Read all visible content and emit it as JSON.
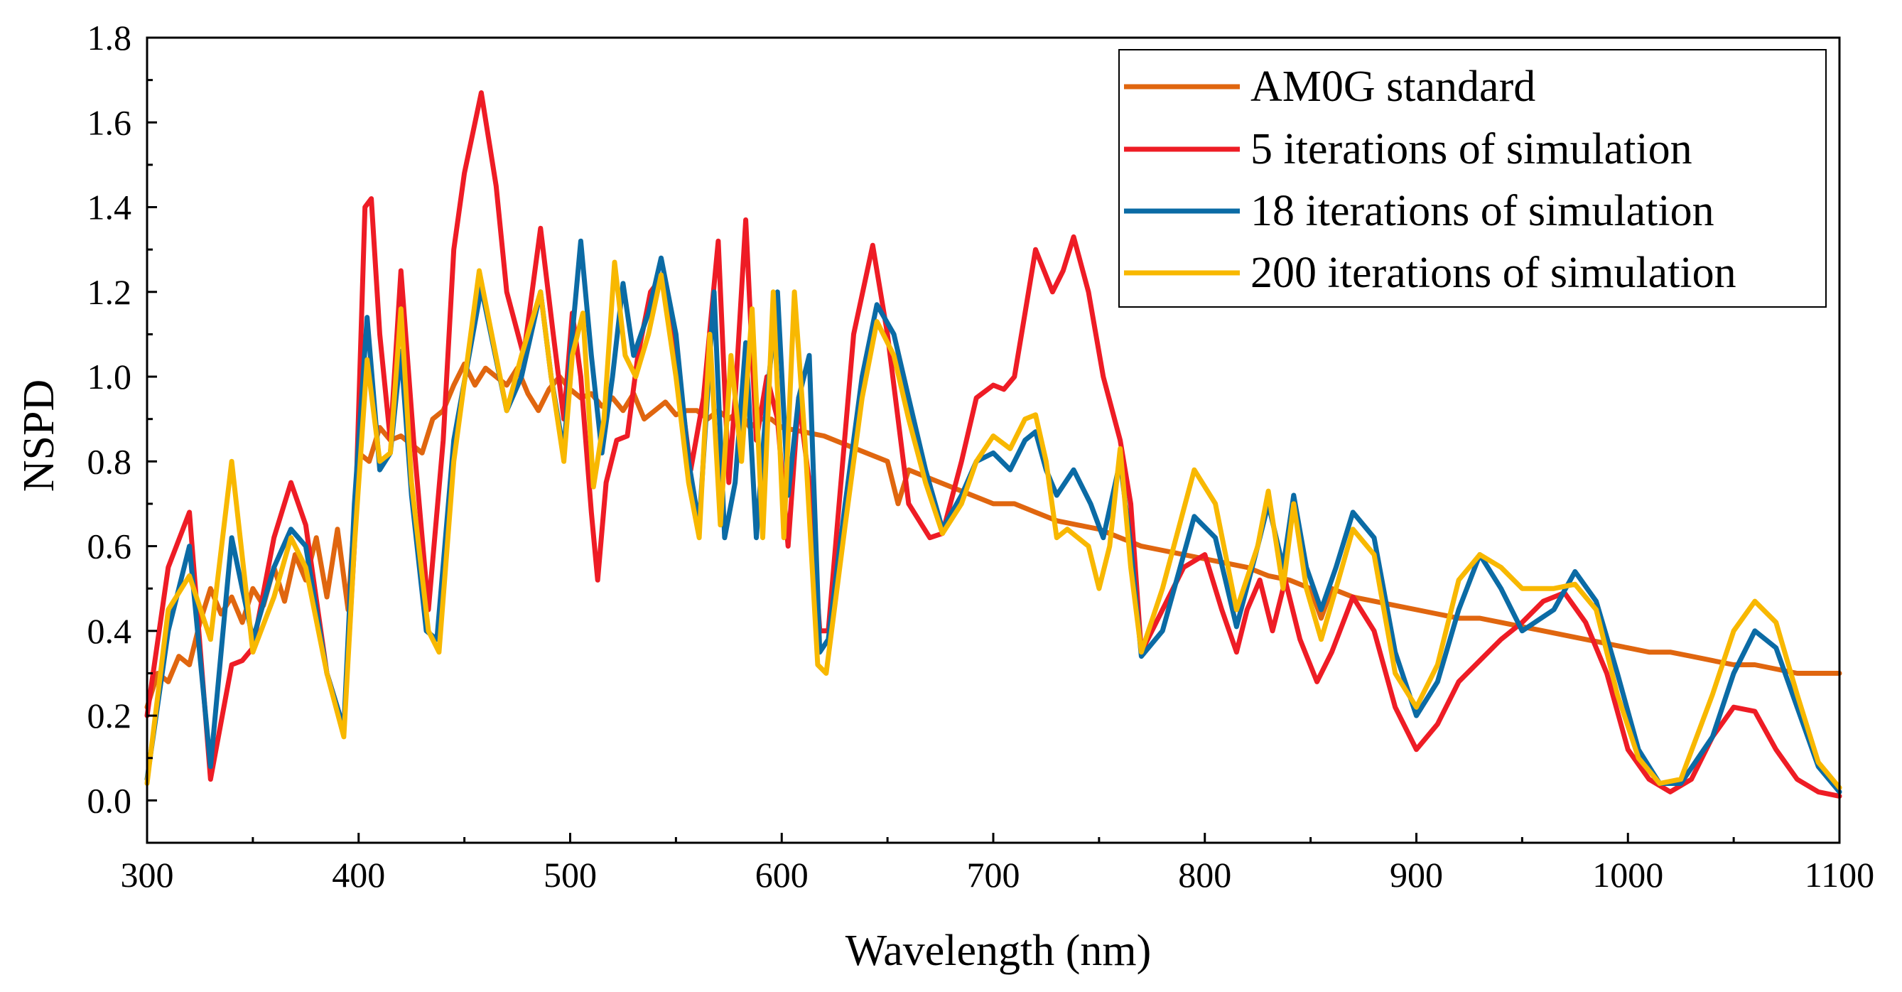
{
  "chart_data": {
    "type": "line",
    "title": "",
    "xlabel": "Wavelength (nm)",
    "ylabel": "NSPD",
    "xlim": [
      300,
      1100
    ],
    "ylim": [
      -0.1,
      1.8
    ],
    "xticks": [
      300,
      400,
      500,
      600,
      700,
      800,
      900,
      1000,
      1100
    ],
    "xtick_labels": [
      "300",
      "400",
      "500",
      "600",
      "700",
      "800",
      "900",
      "1000",
      "1100"
    ],
    "yticks": [
      0.0,
      0.2,
      0.4,
      0.6,
      0.8,
      1.0,
      1.2,
      1.4,
      1.6,
      1.8
    ],
    "ytick_labels": [
      "0.0",
      "0.2",
      "0.4",
      "0.6",
      "0.8",
      "1.0",
      "1.2",
      "1.4",
      "1.6",
      "1.8"
    ],
    "grid": false,
    "legend_position": "top-right",
    "series": [
      {
        "name": "AM0G standard",
        "color": "#E0660F",
        "x": [
          300,
          305,
          310,
          315,
          320,
          325,
          330,
          335,
          340,
          345,
          350,
          355,
          360,
          365,
          370,
          375,
          380,
          385,
          390,
          395,
          400,
          405,
          410,
          415,
          420,
          425,
          430,
          435,
          440,
          445,
          450,
          455,
          460,
          465,
          470,
          475,
          480,
          485,
          490,
          495,
          500,
          505,
          510,
          515,
          520,
          525,
          530,
          535,
          540,
          545,
          550,
          555,
          560,
          565,
          570,
          575,
          580,
          585,
          590,
          595,
          600,
          610,
          620,
          630,
          640,
          650,
          655,
          660,
          670,
          680,
          690,
          700,
          710,
          720,
          730,
          740,
          750,
          760,
          770,
          780,
          790,
          800,
          810,
          820,
          830,
          840,
          850,
          855,
          860,
          870,
          880,
          890,
          900,
          910,
          920,
          930,
          940,
          950,
          960,
          970,
          980,
          990,
          1000,
          1010,
          1020,
          1030,
          1040,
          1050,
          1060,
          1070,
          1080,
          1090,
          1100
        ],
        "y": [
          0.22,
          0.3,
          0.28,
          0.34,
          0.32,
          0.42,
          0.5,
          0.44,
          0.48,
          0.42,
          0.5,
          0.46,
          0.55,
          0.47,
          0.58,
          0.52,
          0.62,
          0.48,
          0.64,
          0.45,
          0.82,
          0.8,
          0.88,
          0.85,
          0.86,
          0.84,
          0.82,
          0.9,
          0.92,
          0.98,
          1.03,
          0.98,
          1.02,
          1.0,
          0.98,
          1.02,
          0.96,
          0.92,
          0.97,
          1.0,
          0.97,
          0.95,
          0.96,
          0.93,
          0.95,
          0.92,
          0.96,
          0.9,
          0.92,
          0.94,
          0.91,
          0.92,
          0.92,
          0.9,
          0.92,
          0.9,
          0.92,
          0.88,
          0.9,
          0.9,
          0.88,
          0.87,
          0.86,
          0.84,
          0.82,
          0.8,
          0.7,
          0.78,
          0.76,
          0.74,
          0.72,
          0.7,
          0.7,
          0.68,
          0.66,
          0.65,
          0.64,
          0.62,
          0.6,
          0.59,
          0.58,
          0.57,
          0.56,
          0.55,
          0.53,
          0.52,
          0.5,
          0.43,
          0.5,
          0.48,
          0.47,
          0.46,
          0.45,
          0.44,
          0.43,
          0.43,
          0.42,
          0.41,
          0.4,
          0.39,
          0.38,
          0.37,
          0.36,
          0.35,
          0.35,
          0.34,
          0.33,
          0.32,
          0.32,
          0.31,
          0.3,
          0.3,
          0.3
        ]
      },
      {
        "name": "5 iterations of simulation",
        "color": "#EE1C25",
        "x": [
          300,
          310,
          320,
          330,
          340,
          345,
          350,
          360,
          368,
          375,
          385,
          393,
          398,
          403,
          406,
          410,
          415,
          420,
          426,
          433,
          440,
          445,
          450,
          458,
          465,
          470,
          478,
          486,
          492,
          497,
          501,
          505,
          510,
          513,
          517,
          522,
          527,
          532,
          538,
          544,
          550,
          557,
          563,
          570,
          575,
          578,
          583,
          588,
          593,
          598,
          603,
          608,
          613,
          618,
          622,
          628,
          634,
          643,
          650,
          660,
          670,
          676,
          685,
          692,
          700,
          705,
          710,
          715,
          720,
          724,
          728,
          733,
          738,
          745,
          752,
          760,
          765,
          770,
          780,
          790,
          800,
          808,
          815,
          820,
          826,
          832,
          838,
          845,
          853,
          860,
          870,
          880,
          890,
          900,
          910,
          920,
          930,
          940,
          950,
          960,
          970,
          980,
          990,
          1000,
          1010,
          1020,
          1030,
          1040,
          1050,
          1060,
          1070,
          1080,
          1090,
          1100
        ],
        "y": [
          0.2,
          0.55,
          0.68,
          0.05,
          0.32,
          0.33,
          0.36,
          0.62,
          0.75,
          0.65,
          0.3,
          0.17,
          0.6,
          1.4,
          1.42,
          1.1,
          0.85,
          1.25,
          0.85,
          0.45,
          0.85,
          1.3,
          1.48,
          1.67,
          1.45,
          1.2,
          1.05,
          1.35,
          1.1,
          0.9,
          1.15,
          1.0,
          0.68,
          0.52,
          0.75,
          0.85,
          0.86,
          1.05,
          1.2,
          1.24,
          1.05,
          0.78,
          0.95,
          1.32,
          0.75,
          0.95,
          1.37,
          0.85,
          1.0,
          0.9,
          0.6,
          0.95,
          0.75,
          0.4,
          0.4,
          0.75,
          1.1,
          1.31,
          1.1,
          0.7,
          0.62,
          0.63,
          0.8,
          0.95,
          0.98,
          0.97,
          1.0,
          1.15,
          1.3,
          1.25,
          1.2,
          1.25,
          1.33,
          1.2,
          1.0,
          0.85,
          0.7,
          0.35,
          0.45,
          0.55,
          0.58,
          0.45,
          0.35,
          0.45,
          0.52,
          0.4,
          0.52,
          0.38,
          0.28,
          0.35,
          0.48,
          0.4,
          0.22,
          0.12,
          0.18,
          0.28,
          0.33,
          0.38,
          0.42,
          0.47,
          0.49,
          0.42,
          0.3,
          0.12,
          0.05,
          0.02,
          0.05,
          0.15,
          0.22,
          0.21,
          0.12,
          0.05,
          0.02,
          0.01
        ]
      },
      {
        "name": "18 iterations of simulation",
        "color": "#0B6BA5",
        "x": [
          300,
          310,
          320,
          330,
          340,
          350,
          360,
          368,
          375,
          385,
          393,
          398,
          404,
          410,
          415,
          420,
          425,
          432,
          437,
          445,
          458,
          470,
          477,
          486,
          491,
          497,
          501,
          505,
          510,
          515,
          520,
          525,
          530,
          537,
          543,
          550,
          556,
          561,
          568,
          573,
          578,
          583,
          588,
          593,
          598,
          603,
          608,
          613,
          618,
          622,
          630,
          638,
          645,
          653,
          660,
          668,
          676,
          685,
          692,
          700,
          708,
          715,
          720,
          725,
          730,
          738,
          746,
          752,
          760,
          765,
          770,
          780,
          795,
          805,
          815,
          825,
          830,
          837,
          842,
          848,
          855,
          862,
          870,
          880,
          890,
          900,
          910,
          920,
          930,
          940,
          950,
          965,
          975,
          985,
          995,
          1005,
          1015,
          1025,
          1040,
          1050,
          1060,
          1070,
          1080,
          1090,
          1100
        ],
        "y": [
          0.05,
          0.4,
          0.6,
          0.08,
          0.62,
          0.38,
          0.55,
          0.64,
          0.6,
          0.3,
          0.17,
          0.7,
          1.14,
          0.78,
          0.82,
          1.06,
          0.72,
          0.4,
          0.38,
          0.85,
          1.21,
          0.92,
          1.0,
          1.2,
          1.0,
          0.82,
          1.1,
          1.32,
          1.05,
          0.82,
          1.0,
          1.22,
          1.05,
          1.15,
          1.28,
          1.1,
          0.8,
          0.65,
          1.2,
          0.62,
          0.75,
          1.08,
          0.62,
          0.95,
          1.2,
          0.72,
          0.95,
          1.05,
          0.35,
          0.38,
          0.7,
          1.0,
          1.17,
          1.1,
          0.95,
          0.78,
          0.64,
          0.72,
          0.8,
          0.82,
          0.78,
          0.85,
          0.87,
          0.78,
          0.72,
          0.78,
          0.7,
          0.62,
          0.8,
          0.6,
          0.34,
          0.4,
          0.67,
          0.62,
          0.41,
          0.6,
          0.7,
          0.55,
          0.72,
          0.55,
          0.45,
          0.55,
          0.68,
          0.62,
          0.35,
          0.2,
          0.28,
          0.45,
          0.58,
          0.5,
          0.4,
          0.45,
          0.54,
          0.47,
          0.3,
          0.12,
          0.04,
          0.04,
          0.15,
          0.3,
          0.4,
          0.36,
          0.22,
          0.08,
          0.02
        ]
      },
      {
        "name": "200 iterations of simulation",
        "color": "#F8B800",
        "x": [
          300,
          310,
          320,
          330,
          340,
          350,
          360,
          368,
          375,
          385,
          393,
          398,
          404,
          410,
          415,
          420,
          425,
          433,
          438,
          445,
          457,
          470,
          477,
          486,
          491,
          497,
          501,
          506,
          511,
          516,
          521,
          526,
          531,
          537,
          543,
          550,
          556,
          561,
          566,
          571,
          576,
          581,
          586,
          591,
          596,
          601,
          606,
          611,
          617,
          621,
          630,
          638,
          645,
          653,
          660,
          668,
          676,
          685,
          692,
          700,
          708,
          715,
          720,
          725,
          730,
          735,
          740,
          745,
          750,
          755,
          760,
          765,
          770,
          780,
          795,
          805,
          815,
          825,
          830,
          837,
          842,
          848,
          855,
          862,
          870,
          880,
          890,
          900,
          910,
          920,
          930,
          940,
          950,
          965,
          975,
          985,
          995,
          1005,
          1015,
          1025,
          1040,
          1050,
          1060,
          1070,
          1080,
          1090,
          1100
        ],
        "y": [
          0.04,
          0.45,
          0.53,
          0.38,
          0.8,
          0.35,
          0.48,
          0.62,
          0.55,
          0.3,
          0.15,
          0.6,
          1.04,
          0.8,
          0.82,
          1.16,
          0.75,
          0.4,
          0.35,
          0.8,
          1.25,
          0.92,
          1.05,
          1.2,
          1.0,
          0.8,
          1.05,
          1.15,
          0.74,
          0.9,
          1.27,
          1.05,
          1.0,
          1.1,
          1.24,
          1.0,
          0.75,
          0.62,
          1.1,
          0.65,
          1.05,
          0.8,
          1.16,
          0.62,
          1.2,
          0.62,
          1.2,
          0.85,
          0.32,
          0.3,
          0.65,
          0.95,
          1.13,
          1.05,
          0.9,
          0.75,
          0.63,
          0.7,
          0.8,
          0.86,
          0.83,
          0.9,
          0.91,
          0.8,
          0.62,
          0.64,
          0.62,
          0.6,
          0.5,
          0.6,
          0.83,
          0.55,
          0.35,
          0.5,
          0.78,
          0.7,
          0.45,
          0.6,
          0.73,
          0.5,
          0.7,
          0.5,
          0.38,
          0.5,
          0.64,
          0.58,
          0.3,
          0.22,
          0.32,
          0.52,
          0.58,
          0.55,
          0.5,
          0.5,
          0.51,
          0.45,
          0.25,
          0.1,
          0.04,
          0.05,
          0.25,
          0.4,
          0.47,
          0.42,
          0.25,
          0.09,
          0.03
        ]
      }
    ]
  }
}
